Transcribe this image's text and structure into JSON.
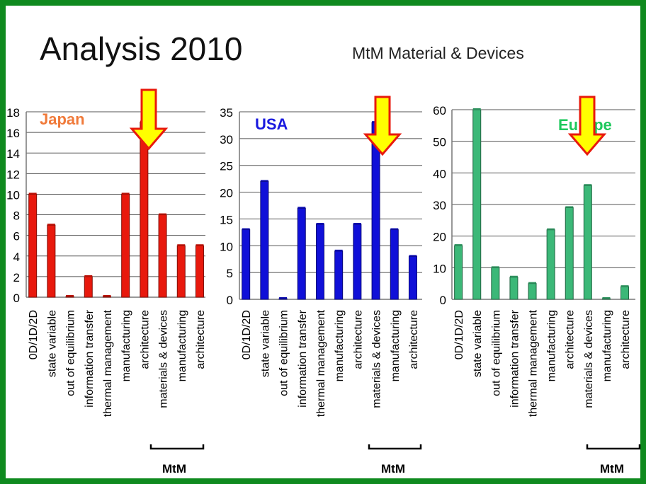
{
  "slide": {
    "title": "Analysis 2010",
    "subtitle": "MtM Material & Devices"
  },
  "colors": {
    "frame": "#0f8a1f",
    "japan": "#e8190d",
    "usa": "#1010d8",
    "europe": "#3cb878",
    "arrow_fill": "#ffff00",
    "arrow_stroke": "#e8190d"
  },
  "chart_data": [
    {
      "type": "bar",
      "title": "Japan",
      "categories": [
        "0D/1D/2D",
        "state variable",
        "out of equilibrium",
        "information transfer",
        "thermal management",
        "manufacturing",
        "architecture",
        "materials & devices",
        "manufacturing",
        "architecture"
      ],
      "values": [
        10,
        7,
        0,
        2,
        0,
        10,
        17,
        8,
        5,
        5
      ],
      "ylim": [
        0,
        18
      ],
      "yticks": [
        0,
        2,
        4,
        6,
        8,
        10,
        12,
        14,
        16,
        18
      ],
      "grid": true,
      "highlight_category_index": 7,
      "bracket_label": "MtM",
      "bracket_range": [
        7,
        9
      ],
      "color": "#e8190d"
    },
    {
      "type": "bar",
      "title": "USA",
      "categories": [
        "0D/1D/2D",
        "state variable",
        "out of equilibrium",
        "information transfer",
        "thermal management",
        "manufacturing",
        "architecture",
        "materials & devices",
        "manufacturing",
        "architecture"
      ],
      "values": [
        13,
        22,
        0,
        17,
        14,
        9,
        14,
        33,
        13,
        8
      ],
      "ylim": [
        0,
        35
      ],
      "yticks": [
        0,
        5,
        10,
        15,
        20,
        25,
        30,
        35
      ],
      "grid": true,
      "highlight_category_index": 7,
      "bracket_label": "MtM",
      "bracket_range": [
        7,
        9
      ],
      "color": "#1010d8"
    },
    {
      "type": "bar",
      "title": "Europe",
      "categories": [
        "0D/1D/2D",
        "state variable",
        "out of equilibrium",
        "information transfer",
        "thermal management",
        "manufacturing",
        "architecture",
        "materials & devices",
        "manufacturing",
        "architecture"
      ],
      "values": [
        17,
        60,
        10,
        7,
        5,
        22,
        29,
        36,
        0,
        4
      ],
      "ylim": [
        0,
        60
      ],
      "yticks": [
        0,
        10,
        20,
        30,
        40,
        50,
        60
      ],
      "grid": true,
      "highlight_category_index": 7,
      "bracket_label": "MtM",
      "bracket_range": [
        7,
        9
      ],
      "color": "#3cb878"
    }
  ]
}
